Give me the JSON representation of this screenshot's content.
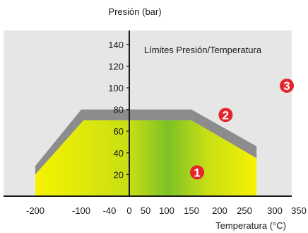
{
  "chart_data": {
    "type": "area",
    "title": "Límites Presión/Temperatura",
    "xlabel": "Temperatura (°C)",
    "ylabel": "Presión (bar)",
    "x_ticks": [
      -200,
      -100,
      -40,
      0,
      50,
      100,
      150,
      200,
      250,
      300,
      350
    ],
    "y_ticks": [
      20,
      40,
      60,
      80,
      100,
      120,
      140
    ],
    "xlim": [
      -240,
      350
    ],
    "ylim": [
      0,
      150
    ],
    "grid": false,
    "zones": [
      {
        "name": "1",
        "color": "yellow-green gradient",
        "outline": [
          {
            "x": -200,
            "y": 0
          },
          {
            "x": -200,
            "y": 20
          },
          {
            "x": -95,
            "y": 70
          },
          {
            "x": 150,
            "y": 70
          },
          {
            "x": 270,
            "y": 35
          },
          {
            "x": 270,
            "y": 0
          }
        ]
      },
      {
        "name": "2",
        "color": "#8c8c8c",
        "outline": [
          {
            "x": -200,
            "y": 20
          },
          {
            "x": -200,
            "y": 28
          },
          {
            "x": -100,
            "y": 80
          },
          {
            "x": 150,
            "y": 80
          },
          {
            "x": 270,
            "y": 46
          },
          {
            "x": 270,
            "y": 35
          },
          {
            "x": 150,
            "y": 70
          },
          {
            "x": -95,
            "y": 70
          }
        ]
      },
      {
        "name": "3",
        "color": "#e6e6e6",
        "note": "area above the pressure/temperature limit"
      }
    ],
    "markers": [
      {
        "label": "1",
        "x": 160,
        "y": 22
      },
      {
        "label": "2",
        "x": 212,
        "y": 75
      },
      {
        "label": "3",
        "x": 325,
        "y": 102
      }
    ]
  },
  "colors": {
    "background_zone": "#e6e6e6",
    "zone2": "#8c8c8c",
    "gradient_yellow": "#f5f200",
    "gradient_green": "#7dc224",
    "marker": "#e4262b"
  }
}
